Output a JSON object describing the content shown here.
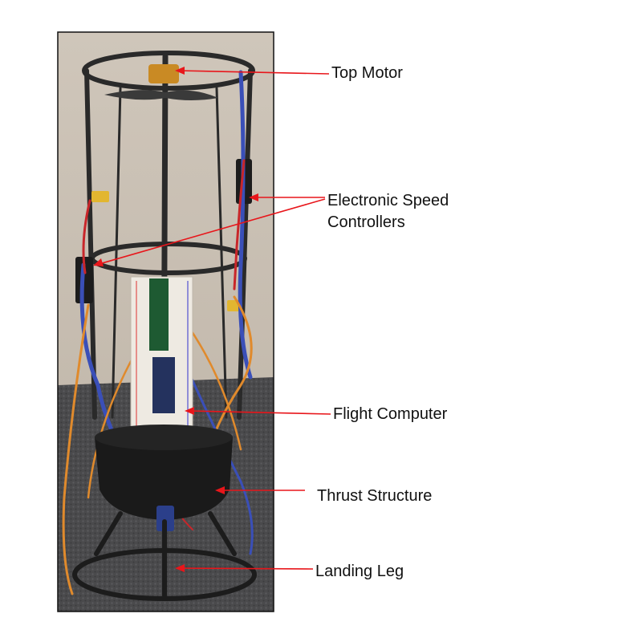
{
  "labels": {
    "top_motor": "Top Motor",
    "esc_line1": "Electronic Speed",
    "esc_line2": "Controllers",
    "flight_computer": "Flight Computer",
    "thrust_structure": "Thrust Structure",
    "landing_leg": "Landing Leg"
  },
  "colors": {
    "leader_line": "#e8161b",
    "background_wall": "#c9c0b4",
    "carpet": "#4a4a4c",
    "frame": "#2a2a2a",
    "motor": "#c98a24",
    "wire_blue": "#3a4fb8",
    "wire_orange": "#e08a2c",
    "wire_red": "#c8262a",
    "breadboard": "#eeeae2"
  }
}
